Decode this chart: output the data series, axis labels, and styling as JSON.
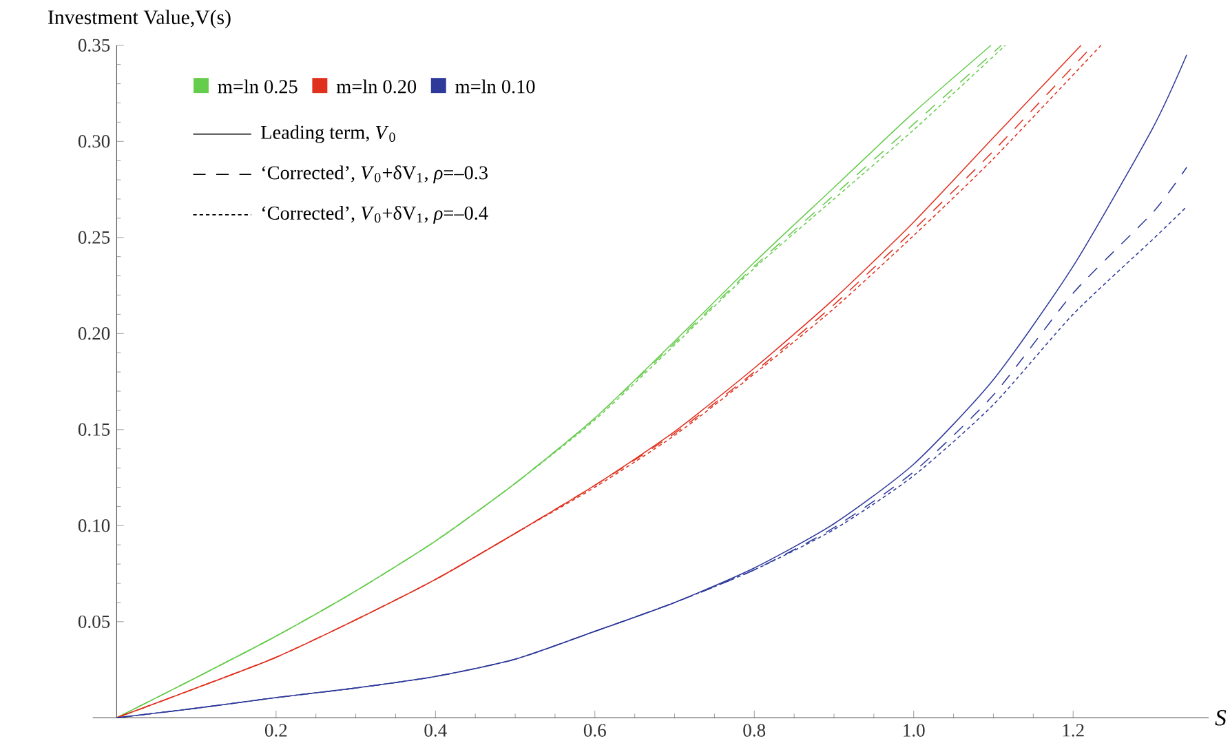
{
  "chart_data": {
    "type": "line",
    "xlabel": "S",
    "ylabel": "Investment Value,V(s)",
    "xlim": [
      -0.03,
      1.37
    ],
    "ylim": [
      0,
      0.35
    ],
    "xticks": [
      0.2,
      0.4,
      0.6,
      0.8,
      {
        "value": 1.0,
        "label": "1.0"
      },
      1.2
    ],
    "yticks": [
      0.05,
      {
        "value": 0.1,
        "label": "0.10"
      },
      0.15,
      {
        "value": 0.2,
        "label": "0.20"
      },
      0.25,
      {
        "value": 0.3,
        "label": "0.30"
      },
      0.35
    ],
    "legend": "top left",
    "grid": false,
    "annotations": [
      "Leading term, *V*$_{0}$",
      "‘Corrected’, *V*$_{0}$+δV$_{1}$, *ρ*=–0.3",
      "‘Corrected’, *V*$_{0}$+δV$_{1}$, *ρ*=–0.4"
    ],
    "series": [
      {
        "name": "m=ln 0.25",
        "color": "#66cc4c",
        "line_style": "solid",
        "x": [
          0,
          0.1,
          0.2,
          0.3,
          0.4,
          0.5,
          0.6,
          0.7,
          0.8,
          0.9,
          1.0,
          1.097
        ],
        "values": [
          0,
          0.021,
          0.0425,
          0.066,
          0.092,
          0.122,
          0.156,
          0.196,
          0.237,
          0.276,
          0.315,
          0.35
        ]
      },
      {
        "color": "#66cc4c",
        "line_style": "dashed",
        "x": [
          0,
          0.1,
          0.2,
          0.3,
          0.4,
          0.5,
          0.6,
          0.7,
          0.8,
          0.9,
          1.0,
          1.11
        ],
        "values": [
          0,
          0.021,
          0.0425,
          0.066,
          0.092,
          0.122,
          0.156,
          0.195,
          0.235,
          0.272,
          0.309,
          0.35
        ]
      },
      {
        "color": "#66cc4c",
        "line_style": "dotted",
        "x": [
          0,
          0.1,
          0.2,
          0.3,
          0.4,
          0.5,
          0.6,
          0.7,
          0.8,
          0.9,
          1.0,
          1.115
        ],
        "values": [
          0,
          0.021,
          0.0425,
          0.066,
          0.092,
          0.122,
          0.155,
          0.194,
          0.234,
          0.27,
          0.306,
          0.35
        ]
      },
      {
        "name": "m=ln 0.20",
        "color": "#e0301e",
        "line_style": "solid",
        "x": [
          0,
          0.1,
          0.2,
          0.3,
          0.4,
          0.5,
          0.6,
          0.7,
          0.8,
          0.9,
          1.0,
          1.1,
          1.21
        ],
        "values": [
          0,
          0.0155,
          0.0315,
          0.051,
          0.072,
          0.096,
          0.121,
          0.149,
          0.182,
          0.218,
          0.258,
          0.302,
          0.35
        ]
      },
      {
        "color": "#e0301e",
        "line_style": "dashed",
        "x": [
          0,
          0.1,
          0.2,
          0.3,
          0.4,
          0.5,
          0.6,
          0.7,
          0.8,
          0.9,
          1.0,
          1.1,
          1.225
        ],
        "values": [
          0,
          0.0155,
          0.0315,
          0.051,
          0.072,
          0.096,
          0.121,
          0.148,
          0.18,
          0.215,
          0.254,
          0.295,
          0.35
        ]
      },
      {
        "color": "#e0301e",
        "line_style": "dotted",
        "x": [
          0,
          0.1,
          0.2,
          0.3,
          0.4,
          0.5,
          0.6,
          0.7,
          0.8,
          0.9,
          1.0,
          1.1,
          1.235
        ],
        "values": [
          0,
          0.0155,
          0.0315,
          0.051,
          0.072,
          0.096,
          0.12,
          0.147,
          0.179,
          0.213,
          0.251,
          0.291,
          0.35
        ]
      },
      {
        "name": "m=ln 0.10",
        "color": "#2e3a9a",
        "line_style": "solid",
        "x": [
          0,
          0.1,
          0.2,
          0.3,
          0.4,
          0.5,
          0.6,
          0.7,
          0.8,
          0.9,
          1.0,
          1.1,
          1.2,
          1.3,
          1.3425
        ],
        "values": [
          0,
          0.005,
          0.0105,
          0.0155,
          0.0215,
          0.0305,
          0.045,
          0.06,
          0.078,
          0.101,
          0.132,
          0.176,
          0.235,
          0.307,
          0.345
        ]
      },
      {
        "color": "#2e3a9a",
        "line_style": "dashed",
        "x": [
          0,
          0.1,
          0.2,
          0.3,
          0.4,
          0.5,
          0.6,
          0.7,
          0.8,
          0.9,
          1.0,
          1.1,
          1.2,
          1.3,
          1.3425
        ],
        "values": [
          0,
          0.005,
          0.0105,
          0.0155,
          0.0215,
          0.0305,
          0.045,
          0.06,
          0.077,
          0.099,
          0.128,
          0.168,
          0.221,
          0.263,
          0.2865
        ]
      },
      {
        "color": "#2e3a9a",
        "line_style": "dotted",
        "x": [
          0,
          0.1,
          0.2,
          0.3,
          0.4,
          0.5,
          0.6,
          0.7,
          0.8,
          0.9,
          1.0,
          1.1,
          1.2,
          1.3,
          1.3425
        ],
        "values": [
          0,
          0.005,
          0.0105,
          0.0155,
          0.0215,
          0.0305,
          0.045,
          0.06,
          0.077,
          0.098,
          0.126,
          0.163,
          0.21,
          0.249,
          0.266
        ]
      }
    ]
  }
}
